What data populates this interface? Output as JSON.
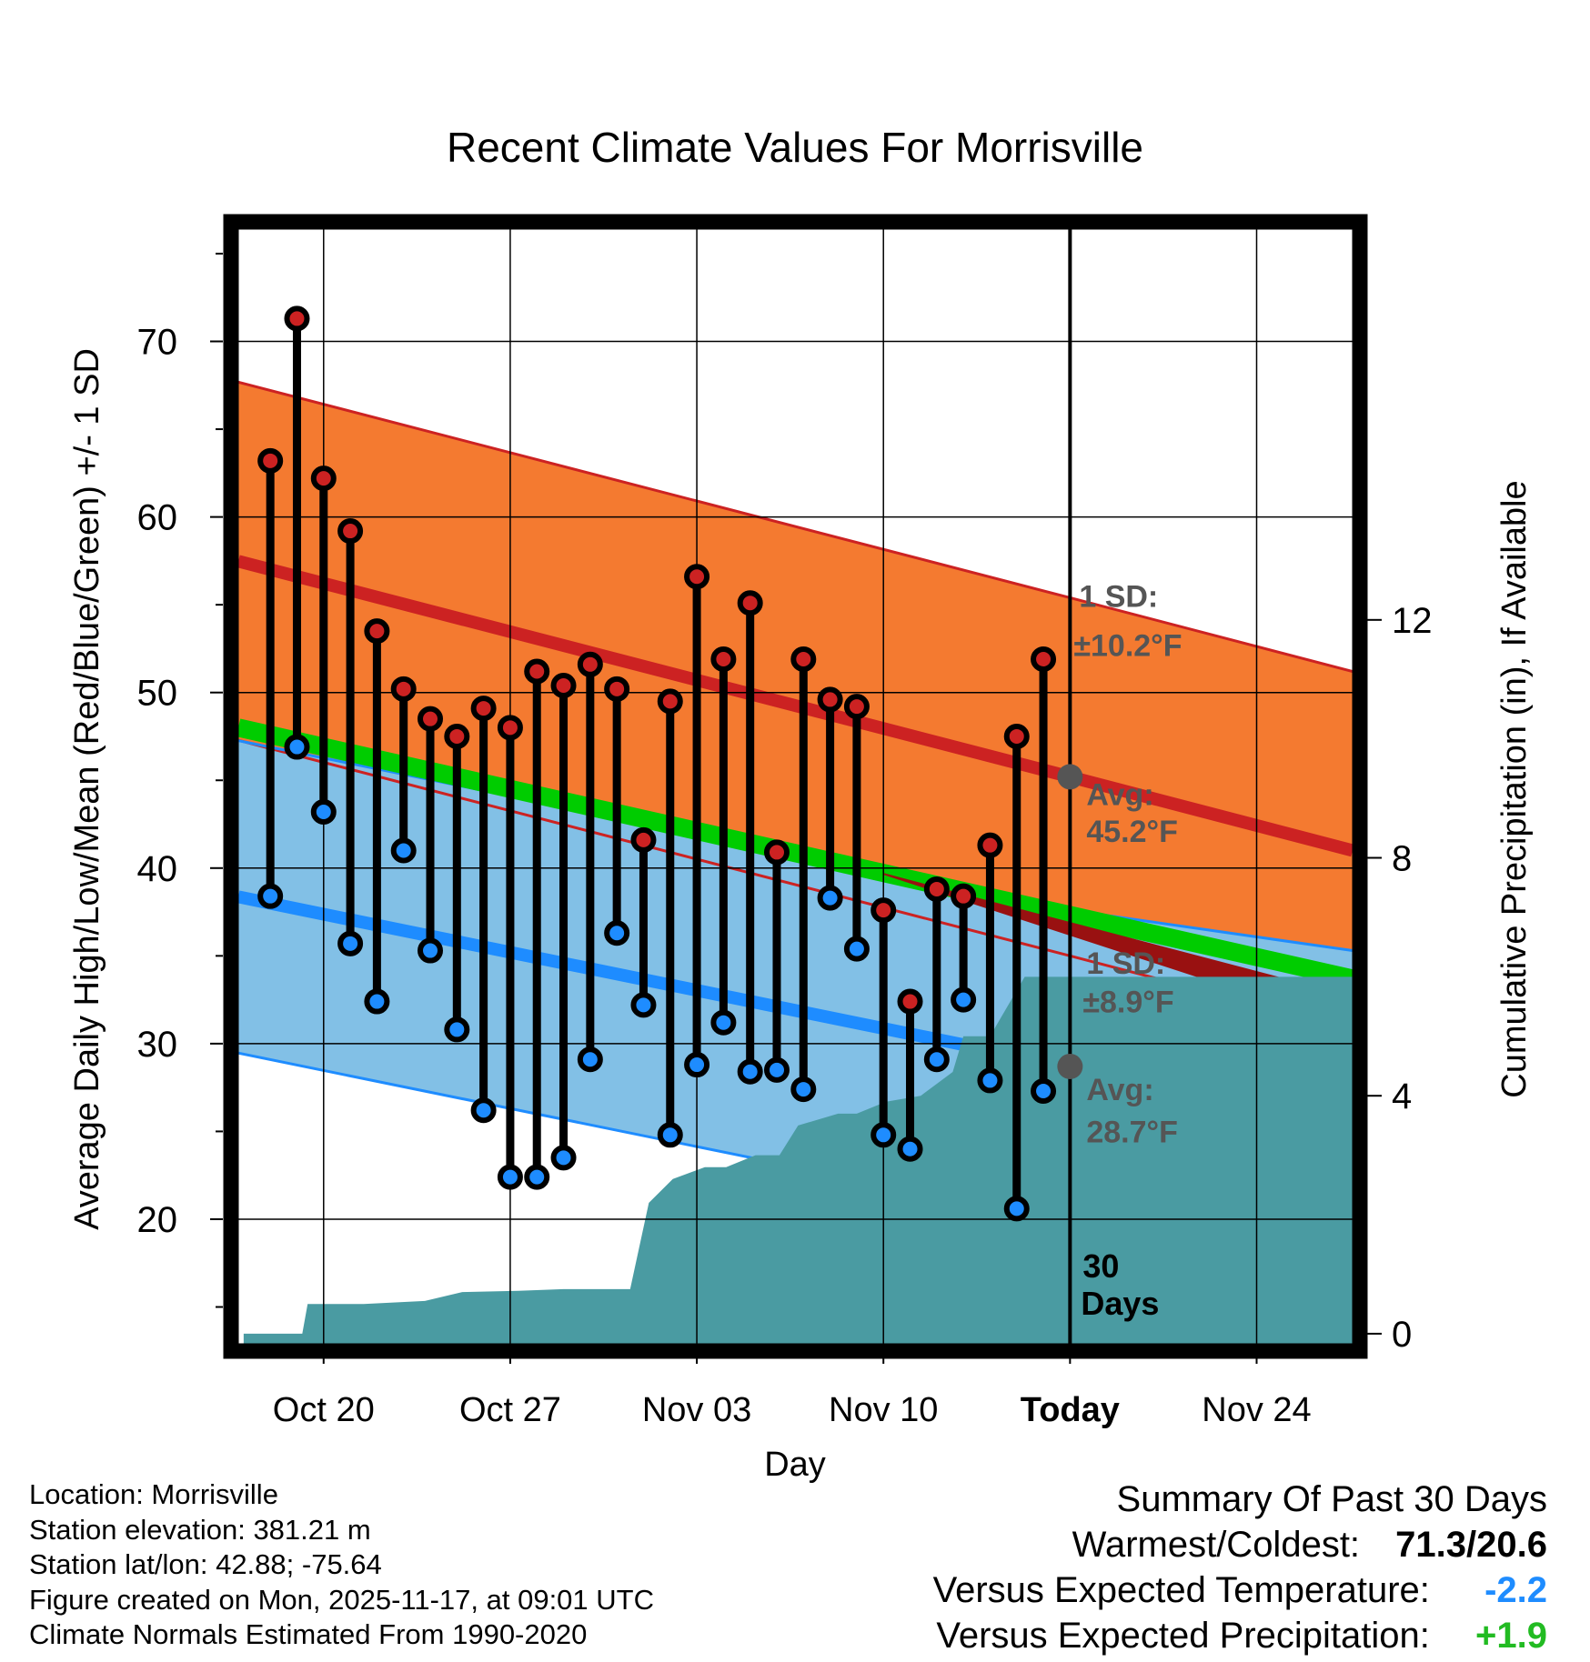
{
  "chart_data": {
    "type": "line",
    "title": "Recent Climate Values For Morrisville",
    "xlabel": "Day",
    "ylabel_left": "Average Daily High/Low/Mean (Red/Blue/Green) +/- 1 SD",
    "ylabel_right": "Cumulative Precipitation (in), If Available",
    "x_tick_labels": [
      "Oct 20",
      "Oct 27",
      "Nov 03",
      "Nov 10",
      "Today",
      "Nov 24"
    ],
    "x_tick_days": [
      3,
      10,
      17,
      24,
      31,
      38
    ],
    "x_range_days": [
      -0.2,
      41.6
    ],
    "today_day": 31,
    "y_left_range": [
      12.8,
      76.5
    ],
    "y_left_ticks": [
      20,
      30,
      40,
      50,
      60,
      70
    ],
    "y_right_range": [
      -0.2,
      18.6
    ],
    "y_right_ticks": [
      0,
      4,
      8,
      12
    ],
    "dates": [
      "Oct 18",
      "Oct 19",
      "Oct 20",
      "Oct 21",
      "Oct 22",
      "Oct 23",
      "Oct 24",
      "Oct 25",
      "Oct 26",
      "Oct 27",
      "Oct 28",
      "Oct 29",
      "Oct 30",
      "Oct 31",
      "Nov 01",
      "Nov 02",
      "Nov 03",
      "Nov 04",
      "Nov 05",
      "Nov 06",
      "Nov 07",
      "Nov 08",
      "Nov 09",
      "Nov 10",
      "Nov 11",
      "Nov 12",
      "Nov 13",
      "Nov 14",
      "Nov 15",
      "Nov 16"
    ],
    "series": [
      {
        "name": "Daily High",
        "color": "#cc2222",
        "values": [
          63.2,
          71.3,
          62.2,
          59.2,
          53.5,
          50.2,
          48.5,
          47.5,
          49.1,
          48.0,
          51.2,
          50.4,
          51.6,
          50.2,
          41.6,
          49.5,
          56.6,
          51.9,
          55.1,
          40.9,
          51.9,
          49.6,
          49.2,
          37.6,
          32.4,
          38.8,
          38.4,
          41.3,
          47.5,
          51.9
        ]
      },
      {
        "name": "Daily Low",
        "color": "#2299ff",
        "values": [
          38.4,
          46.9,
          43.2,
          35.7,
          32.4,
          41.0,
          35.3,
          30.8,
          26.2,
          22.4,
          22.4,
          23.5,
          29.1,
          36.3,
          32.2,
          24.8,
          28.8,
          31.2,
          28.4,
          28.5,
          27.4,
          38.3,
          35.4,
          24.8,
          24.0,
          29.1,
          32.5,
          27.9,
          20.6,
          27.3
        ]
      }
    ],
    "normals": {
      "high_avg_start": 57.4,
      "high_avg_today": 45.2,
      "high_avg_end": 41.0,
      "high_sd": 10.2,
      "low_avg_start": 38.3,
      "low_avg_today": 28.7,
      "low_avg_end": 26.4,
      "low_sd": 8.9,
      "mean_start": 48.0,
      "mean_end": 33.7
    },
    "cumulative_precip": {
      "days": [
        0,
        2.2,
        2.4,
        4.5,
        6.8,
        8.2,
        10.3,
        12.0,
        13.0,
        14.5,
        15.2,
        16.1,
        17.3,
        18.1,
        19.2,
        20.1,
        20.8,
        22.3,
        23.0,
        24.1,
        25.4,
        26.0,
        26.6,
        27.0,
        28.0,
        29.3,
        30.3,
        41.6
      ],
      "values": [
        0,
        0,
        0.5,
        0.5,
        0.55,
        0.7,
        0.72,
        0.75,
        0.75,
        0.75,
        2.2,
        2.6,
        2.8,
        2.8,
        3.0,
        3.0,
        3.5,
        3.7,
        3.7,
        3.9,
        4.0,
        4.2,
        4.4,
        5.0,
        5.0,
        6.0,
        6.0,
        6.0
      ]
    },
    "annotations": {
      "high_sd_label": "1 SD:",
      "high_sd_value": "±10.2°F",
      "high_avg_label": "Avg:",
      "high_avg_value": "45.2°F",
      "low_sd_label": "1 SD:",
      "low_sd_value": "±8.9°F",
      "low_avg_label": "Avg:",
      "low_avg_value": "28.7°F",
      "period_number": "30",
      "period_unit": "Days"
    },
    "colors": {
      "high_band": "#f47a30",
      "high_line": "#cc2222",
      "low_band": "#82c0e6",
      "low_line": "#1e8cff",
      "mean_line": "#00cc00",
      "mean_overlap": "#991111",
      "precip": "#4a9ba2",
      "annotation": "#555555"
    }
  },
  "info": {
    "location": "Location: Morrisville",
    "elevation": "Station elevation: 381.21 m",
    "latlon": "Station lat/lon: 42.88; -75.64",
    "created": "Figure created on Mon, 2025-11-17, at 09:01 UTC",
    "normals": "Climate Normals Estimated From 1990-2020"
  },
  "summary": {
    "title": "Summary Of Past 30 Days",
    "warm_cold_label": "Warmest/Coldest:",
    "warm_cold_value": "71.3/20.6",
    "temp_label": "Versus Expected Temperature:",
    "temp_value": "-2.2",
    "temp_color": "#1e8cff",
    "precip_label": "Versus Expected Precipitation:",
    "precip_value": "+1.9",
    "precip_color": "#22bb22"
  }
}
